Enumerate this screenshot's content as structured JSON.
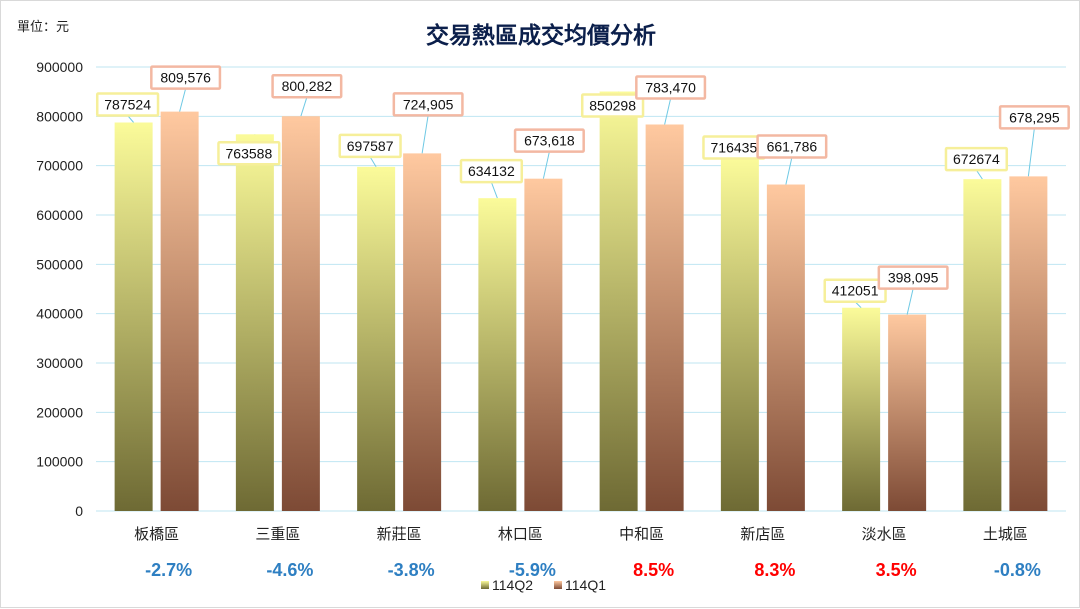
{
  "chart_data": {
    "type": "bar",
    "title": "交易熱區成交均價分析",
    "unit_label": "單位：元",
    "categories": [
      "板橋區",
      "三重區",
      "新莊區",
      "林口區",
      "中和區",
      "新店區",
      "淡水區",
      "土城區"
    ],
    "series": [
      {
        "name": "114Q2",
        "values": [
          787524,
          763588,
          697587,
          634132,
          850298,
          716435,
          412051,
          672674
        ],
        "labels": [
          "787524",
          "763588",
          "697587",
          "634132",
          "850298",
          "716435",
          "412051",
          "672674"
        ]
      },
      {
        "name": "114Q1",
        "values": [
          809576,
          800282,
          724905,
          673618,
          783470,
          661786,
          398095,
          678295
        ],
        "labels": [
          "809,576",
          "800,282",
          "724,905",
          "673,618",
          "783,470",
          "661,786",
          "398,095",
          "678,295"
        ]
      }
    ],
    "changes": [
      "-2.7%",
      "-4.6%",
      "-3.8%",
      "-5.9%",
      "8.5%",
      "8.3%",
      "3.5%",
      "-0.8%"
    ],
    "ylim": [
      0,
      900000
    ],
    "yticks": [
      "0",
      "100000",
      "200000",
      "300000",
      "400000",
      "500000",
      "600000",
      "700000",
      "800000",
      "900000"
    ],
    "grid": true,
    "legend": "bottom"
  },
  "colors": {
    "q2_top": "#fbfb9a",
    "q2_bottom": "#6e6a34",
    "q1_top": "#ffc9a0",
    "q1_bottom": "#7d4a35",
    "q2_label_border": "#f6ef9a",
    "q1_label_border": "#f3b8a2",
    "positive": "#ff0000",
    "negative": "#2e7fc2",
    "title": "#0b1f4b",
    "grid": "#bfe6f2",
    "leader": "#6fc9e4"
  }
}
